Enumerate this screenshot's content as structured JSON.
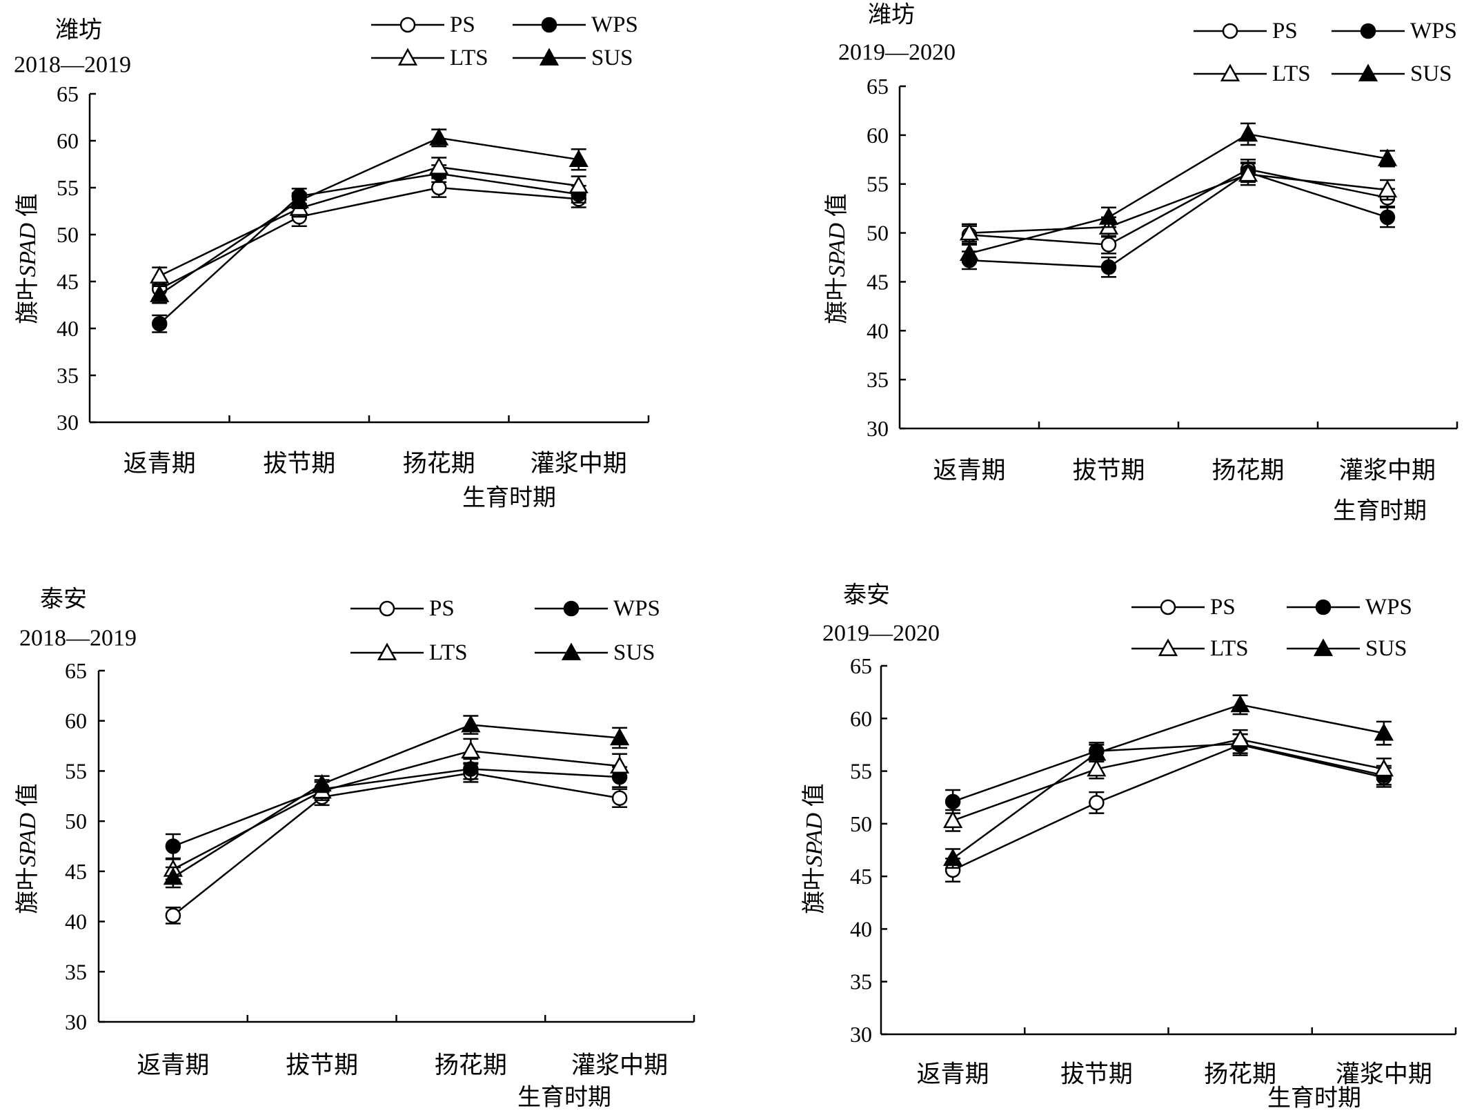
{
  "chart_data": [
    {
      "type": "line",
      "location": "潍坊",
      "years": "2018—2019",
      "xlabel": "生育时期",
      "ylabel_prefix": "旗叶",
      "ylabel_italic": "SPAD",
      "ylabel_suffix": " 值",
      "ylim": [
        30,
        65
      ],
      "yticks": [
        "30",
        "35",
        "40",
        "45",
        "50",
        "55",
        "60",
        "65"
      ],
      "categories": [
        "返青期",
        "拔节期",
        "扬花期",
        "灌浆中期"
      ],
      "legend_placement": "top-right",
      "series": [
        {
          "name": "PS",
          "marker": "circle-open",
          "values": [
            44.2,
            51.9,
            55.0,
            53.8
          ],
          "errors": [
            1.0,
            1.0,
            1.0,
            0.9
          ]
        },
        {
          "name": "WPS",
          "marker": "circle-filled",
          "values": [
            40.5,
            54.1,
            56.5,
            54.3
          ],
          "errors": [
            0.9,
            0.8,
            0.9,
            0.9
          ]
        },
        {
          "name": "LTS",
          "marker": "triangle-open",
          "values": [
            45.6,
            52.8,
            57.2,
            55.2
          ],
          "errors": [
            0.9,
            0.9,
            1.0,
            1.0
          ]
        },
        {
          "name": "SUS",
          "marker": "triangle-filled",
          "values": [
            43.6,
            53.6,
            60.3,
            58.0
          ],
          "errors": [
            0.9,
            0.8,
            0.9,
            1.1
          ]
        }
      ]
    },
    {
      "type": "line",
      "location": "潍坊",
      "years": "2019—2020",
      "xlabel": "生育时期",
      "ylabel_prefix": "旗叶",
      "ylabel_italic": "SPAD",
      "ylabel_suffix": " 值",
      "ylim": [
        30,
        65
      ],
      "yticks": [
        "30",
        "35",
        "40",
        "45",
        "50",
        "55",
        "60",
        "65"
      ],
      "categories": [
        "返青期",
        "拔节期",
        "扬花期",
        "灌浆中期"
      ],
      "legend_placement": "top-right",
      "series": [
        {
          "name": "PS",
          "marker": "circle-open",
          "values": [
            49.8,
            48.8,
            56.5,
            53.6
          ],
          "errors": [
            0.9,
            0.9,
            1.0,
            0.9
          ]
        },
        {
          "name": "WPS",
          "marker": "circle-filled",
          "values": [
            47.2,
            46.5,
            56.2,
            51.6
          ],
          "errors": [
            0.9,
            1.0,
            1.0,
            1.0
          ]
        },
        {
          "name": "LTS",
          "marker": "triangle-open",
          "values": [
            50.0,
            50.6,
            56.0,
            54.4
          ],
          "errors": [
            0.9,
            1.0,
            1.1,
            1.0
          ]
        },
        {
          "name": "SUS",
          "marker": "triangle-filled",
          "values": [
            47.9,
            51.6,
            60.1,
            57.6
          ],
          "errors": [
            0.9,
            1.0,
            1.1,
            0.8
          ]
        }
      ]
    },
    {
      "type": "line",
      "location": "泰安",
      "years": "2018—2019",
      "xlabel": "生育时期",
      "ylabel_prefix": "旗叶",
      "ylabel_italic": "SPAD",
      "ylabel_suffix": " 值",
      "ylim": [
        30,
        65
      ],
      "yticks": [
        "30",
        "35",
        "40",
        "45",
        "50",
        "55",
        "60",
        "65"
      ],
      "categories": [
        "返青期",
        "拔节期",
        "扬花期",
        "灌浆中期"
      ],
      "legend_placement": "top-right",
      "series": [
        {
          "name": "PS",
          "marker": "circle-open",
          "values": [
            40.6,
            52.4,
            54.8,
            52.3
          ],
          "errors": [
            0.8,
            0.8,
            0.9,
            0.9
          ]
        },
        {
          "name": "WPS",
          "marker": "circle-filled",
          "values": [
            47.5,
            53.2,
            55.2,
            54.4
          ],
          "errors": [
            1.2,
            0.9,
            1.0,
            1.0
          ]
        },
        {
          "name": "LTS",
          "marker": "triangle-open",
          "values": [
            45.2,
            53.0,
            57.0,
            55.5
          ],
          "errors": [
            1.0,
            0.9,
            1.2,
            1.2
          ]
        },
        {
          "name": "SUS",
          "marker": "triangle-filled",
          "values": [
            44.4,
            53.7,
            59.6,
            58.3
          ],
          "errors": [
            1.0,
            0.8,
            0.9,
            1.0
          ]
        }
      ]
    },
    {
      "type": "line",
      "location": "泰安",
      "years": "2019—2020",
      "xlabel": "生育时期",
      "ylabel_prefix": "旗叶",
      "ylabel_italic": "SPAD",
      "ylabel_suffix": " 值",
      "ylim": [
        30,
        65
      ],
      "yticks": [
        "30",
        "35",
        "40",
        "45",
        "50",
        "55",
        "60",
        "65"
      ],
      "categories": [
        "返青期",
        "拔节期",
        "扬花期",
        "灌浆中期"
      ],
      "legend_placement": "top-right",
      "series": [
        {
          "name": "PS",
          "marker": "circle-open",
          "values": [
            45.6,
            52.0,
            57.5,
            54.4
          ],
          "errors": [
            1.1,
            1.0,
            1.0,
            0.9
          ]
        },
        {
          "name": "WPS",
          "marker": "circle-filled",
          "values": [
            52.1,
            56.9,
            57.6,
            54.6
          ],
          "errors": [
            1.1,
            0.8,
            0.9,
            0.9
          ]
        },
        {
          "name": "LTS",
          "marker": "triangle-open",
          "values": [
            50.3,
            55.2,
            58.0,
            55.2
          ],
          "errors": [
            1.0,
            0.9,
            0.9,
            1.0
          ]
        },
        {
          "name": "SUS",
          "marker": "triangle-filled",
          "values": [
            46.7,
            56.7,
            61.3,
            58.6
          ],
          "errors": [
            0.9,
            0.8,
            0.9,
            1.1
          ]
        }
      ]
    }
  ]
}
